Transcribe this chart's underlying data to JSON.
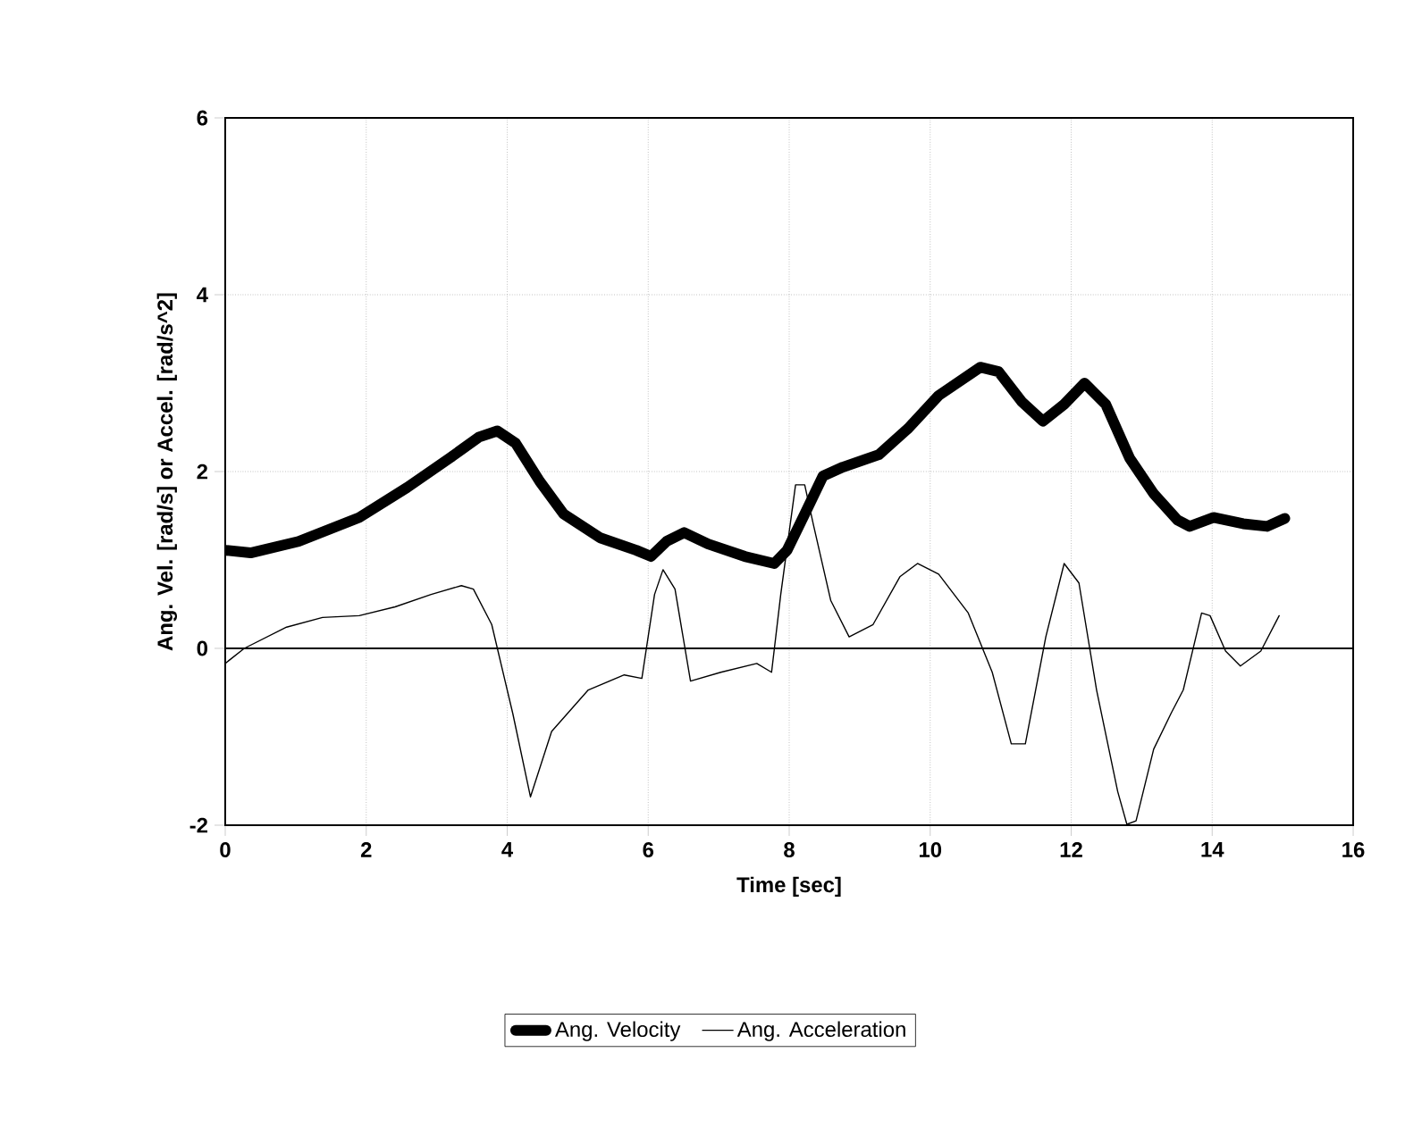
{
  "chart_data": {
    "type": "line",
    "xlabel": "Time [sec]",
    "ylabel": "Ang. Vel. [rad/s] or Accel. [rad/s^2]",
    "xlim": [
      0,
      16
    ],
    "ylim": [
      -2,
      6
    ],
    "xticks": [
      0,
      2,
      4,
      6,
      8,
      10,
      12,
      14,
      16
    ],
    "yticks": [
      -2,
      0,
      2,
      4,
      6
    ],
    "grid": true,
    "legend": "bottom",
    "marker": "none",
    "line_style": "solid",
    "ref_lines": [
      {
        "axis": "y",
        "value": 0,
        "color": "#000000"
      }
    ],
    "series": [
      {
        "name": "Ang. Velocity",
        "color": "#000000",
        "x": [
          0,
          0.36,
          1.04,
          1.9,
          2.58,
          3.18,
          3.6,
          3.86,
          4.12,
          4.46,
          4.8,
          5.32,
          5.83,
          6.04,
          6.26,
          6.51,
          6.85,
          7.37,
          7.79,
          7.97,
          8.22,
          8.48,
          8.76,
          9.27,
          9.69,
          10.12,
          10.71,
          10.97,
          11.3,
          11.6,
          11.9,
          12.19,
          12.49,
          12.83,
          13.17,
          13.51,
          13.68,
          14.02,
          14.44,
          14.78,
          15.03
        ],
        "values": [
          1.11,
          1.08,
          1.21,
          1.48,
          1.82,
          2.15,
          2.39,
          2.46,
          2.32,
          1.89,
          1.52,
          1.25,
          1.11,
          1.04,
          1.21,
          1.31,
          1.18,
          1.04,
          0.96,
          1.11,
          1.52,
          1.95,
          2.05,
          2.19,
          2.49,
          2.86,
          3.18,
          3.13,
          2.79,
          2.57,
          2.76,
          3.0,
          2.76,
          2.15,
          1.75,
          1.45,
          1.38,
          1.48,
          1.41,
          1.38,
          1.47
        ]
      },
      {
        "name": "Ang. Acceleration",
        "color": "#000000",
        "x": [
          0,
          0.27,
          0.87,
          1.38,
          1.9,
          2.41,
          2.92,
          3.35,
          3.52,
          3.78,
          4.08,
          4.33,
          4.63,
          5.15,
          5.66,
          5.91,
          6.09,
          6.21,
          6.38,
          6.6,
          7.03,
          7.54,
          7.75,
          7.88,
          8.09,
          8.22,
          8.34,
          8.59,
          8.85,
          9.19,
          9.57,
          9.82,
          10.12,
          10.54,
          10.88,
          11.15,
          11.35,
          11.64,
          11.9,
          12.11,
          12.36,
          12.66,
          12.79,
          12.92,
          13.17,
          13.42,
          13.59,
          13.85,
          13.97,
          14.19,
          14.4,
          14.69,
          14.95
        ],
        "values": [
          -0.17,
          0,
          0.24,
          0.35,
          0.37,
          0.47,
          0.61,
          0.71,
          0.67,
          0.27,
          -0.74,
          -1.68,
          -0.94,
          -0.47,
          -0.3,
          -0.34,
          0.61,
          0.89,
          0.67,
          -0.37,
          -0.27,
          -0.17,
          -0.27,
          0.61,
          1.85,
          1.85,
          1.41,
          0.54,
          0.13,
          0.27,
          0.81,
          0.96,
          0.84,
          0.4,
          -0.27,
          -1.08,
          -1.08,
          0.13,
          0.96,
          0.74,
          -0.47,
          -1.62,
          -1.99,
          -1.95,
          -1.14,
          -0.73,
          -0.47,
          0.4,
          0.37,
          -0.03,
          -0.2,
          -0.03,
          0.37
        ]
      }
    ]
  }
}
